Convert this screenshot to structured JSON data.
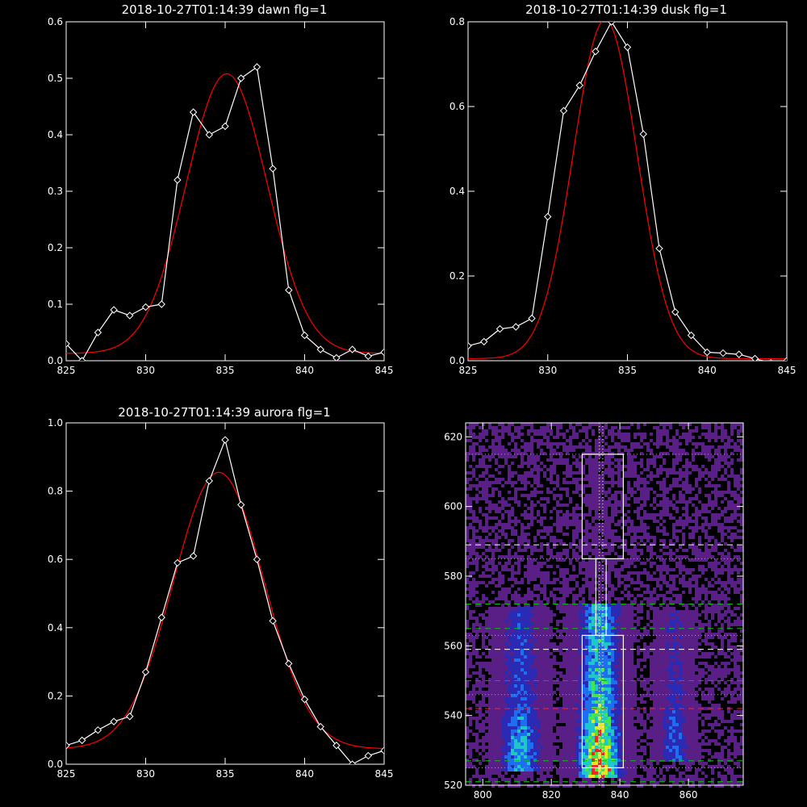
{
  "chart_data": [
    {
      "type": "line",
      "title": "2018-10-27T01:14:39 dawn flg=1",
      "xlim": [
        825,
        845
      ],
      "ylim": [
        0,
        0.6
      ],
      "xticks": [
        "825",
        "830",
        "835",
        "840",
        "845"
      ],
      "yticks": [
        "0.0",
        "0.1",
        "0.2",
        "0.3",
        "0.4",
        "0.5",
        "0.6"
      ],
      "series": [
        {
          "color": "#ffffff",
          "markers": "diamond",
          "x": [
            825,
            826,
            827,
            828,
            829,
            830,
            831,
            832,
            833,
            834,
            835,
            836,
            837,
            838,
            839,
            840,
            841,
            842,
            843,
            844,
            845
          ],
          "y": [
            0.03,
            0.0,
            0.05,
            0.09,
            0.08,
            0.095,
            0.1,
            0.32,
            0.44,
            0.4,
            0.415,
            0.5,
            0.52,
            0.34,
            0.125,
            0.045,
            0.02,
            0.005,
            0.02,
            0.008,
            0.015
          ]
        },
        {
          "color": "#ff0000",
          "markers": "none",
          "fit": {
            "amplitude": 0.495,
            "center": 835.1,
            "sigma": 2.55,
            "offset": 0.013
          }
        }
      ]
    },
    {
      "type": "line",
      "title": "2018-10-27T01:14:39 dusk flg=1",
      "xlim": [
        825,
        845
      ],
      "ylim": [
        0,
        0.8
      ],
      "xticks": [
        "825",
        "830",
        "835",
        "840",
        "845"
      ],
      "yticks": [
        "0.0",
        "0.2",
        "0.4",
        "0.6",
        "0.8"
      ],
      "series": [
        {
          "color": "#ffffff",
          "markers": "diamond",
          "x": [
            825,
            826,
            827,
            828,
            829,
            830,
            831,
            832,
            833,
            834,
            835,
            836,
            837,
            838,
            839,
            840,
            841,
            842,
            843,
            844,
            845
          ],
          "y": [
            0.035,
            0.045,
            0.075,
            0.08,
            0.1,
            0.34,
            0.59,
            0.65,
            0.73,
            0.8,
            0.74,
            0.535,
            0.265,
            0.115,
            0.06,
            0.02,
            0.018,
            0.015,
            0.005,
            -0.005,
            0.0
          ]
        },
        {
          "color": "#ff0000",
          "markers": "none",
          "fit": {
            "amplitude": 0.8,
            "center": 833.6,
            "sigma": 2.0,
            "offset": 0.005
          }
        }
      ]
    },
    {
      "type": "line",
      "title": "2018-10-27T01:14:39 aurora flg=1",
      "xlim": [
        825,
        845
      ],
      "ylim": [
        0,
        1.0
      ],
      "xticks": [
        "825",
        "830",
        "835",
        "840",
        "845"
      ],
      "yticks": [
        "0.0",
        "0.2",
        "0.4",
        "0.6",
        "0.8",
        "1.0"
      ],
      "series": [
        {
          "color": "#ffffff",
          "markers": "diamond",
          "x": [
            825,
            826,
            827,
            828,
            829,
            830,
            831,
            832,
            833,
            834,
            835,
            836,
            837,
            838,
            839,
            840,
            841,
            842,
            843,
            844,
            845
          ],
          "y": [
            0.055,
            0.07,
            0.1,
            0.125,
            0.14,
            0.27,
            0.43,
            0.59,
            0.61,
            0.83,
            0.95,
            0.76,
            0.6,
            0.42,
            0.295,
            0.19,
            0.11,
            0.055,
            0.0,
            0.025,
            0.04
          ]
        },
        {
          "color": "#ff0000",
          "markers": "none",
          "fit": {
            "amplitude": 0.81,
            "center": 834.6,
            "sigma": 2.85,
            "offset": 0.045
          }
        }
      ]
    },
    {
      "type": "heatmap",
      "title": "",
      "xlim": [
        795,
        876
      ],
      "ylim": [
        520,
        624
      ],
      "xticks": [
        "800",
        "820",
        "840",
        "860"
      ],
      "yticks": [
        "520",
        "540",
        "560",
        "580",
        "600",
        "620"
      ],
      "colorscale": [
        "#000000",
        "#5a1f86",
        "#2a2ab4",
        "#1e6ef0",
        "#1ec8c8",
        "#46e646",
        "#e6e61e",
        "#ff2020"
      ],
      "columns": [
        {
          "center": 811,
          "width": 4,
          "ymin": 524,
          "ymax": 571,
          "peak": 0.55
        },
        {
          "center": 834,
          "width": 4,
          "ymin": 522,
          "ymax": 572,
          "peak": 1.0
        },
        {
          "center": 856,
          "width": 3,
          "ymin": 527,
          "ymax": 570,
          "peak": 0.38
        }
      ],
      "boxes": [
        {
          "x0": 829,
          "x1": 841,
          "y0": 585,
          "y1": 615
        },
        {
          "x0": 829,
          "x1": 841,
          "y0": 525,
          "y1": 563
        },
        {
          "x0": 833,
          "x1": 836,
          "y0": 563,
          "y1": 585
        }
      ],
      "hlines": [
        {
          "y": 615,
          "color": "#ff66ff",
          "style": "dotted"
        },
        {
          "y": 589,
          "color": "#ffffff",
          "style": "dashed"
        },
        {
          "y": 585,
          "color": "#ff66ff",
          "style": "dotted"
        },
        {
          "y": 572,
          "color": "#00c000",
          "style": "dashed"
        },
        {
          "y": 565,
          "color": "#00c000",
          "style": "dashed"
        },
        {
          "y": 563,
          "color": "#ff66ff",
          "style": "dotted"
        },
        {
          "y": 559,
          "color": "#ffffff",
          "style": "dashed"
        },
        {
          "y": 550,
          "color": "#ff2020",
          "style": "dashed"
        },
        {
          "y": 546,
          "color": "#ff66ff",
          "style": "dotted"
        },
        {
          "y": 542,
          "color": "#ff2020",
          "style": "dashed"
        },
        {
          "y": 527,
          "color": "#00c000",
          "style": "dashed"
        },
        {
          "y": 525,
          "color": "#ff66ff",
          "style": "dotted"
        },
        {
          "y": 521,
          "color": "#00c000",
          "style": "dashed"
        }
      ],
      "vlines": [
        {
          "x": 834,
          "color": "#ffffff",
          "style": "dotted"
        },
        {
          "x": 835,
          "color": "#ffffff",
          "style": "dotted"
        }
      ]
    }
  ]
}
